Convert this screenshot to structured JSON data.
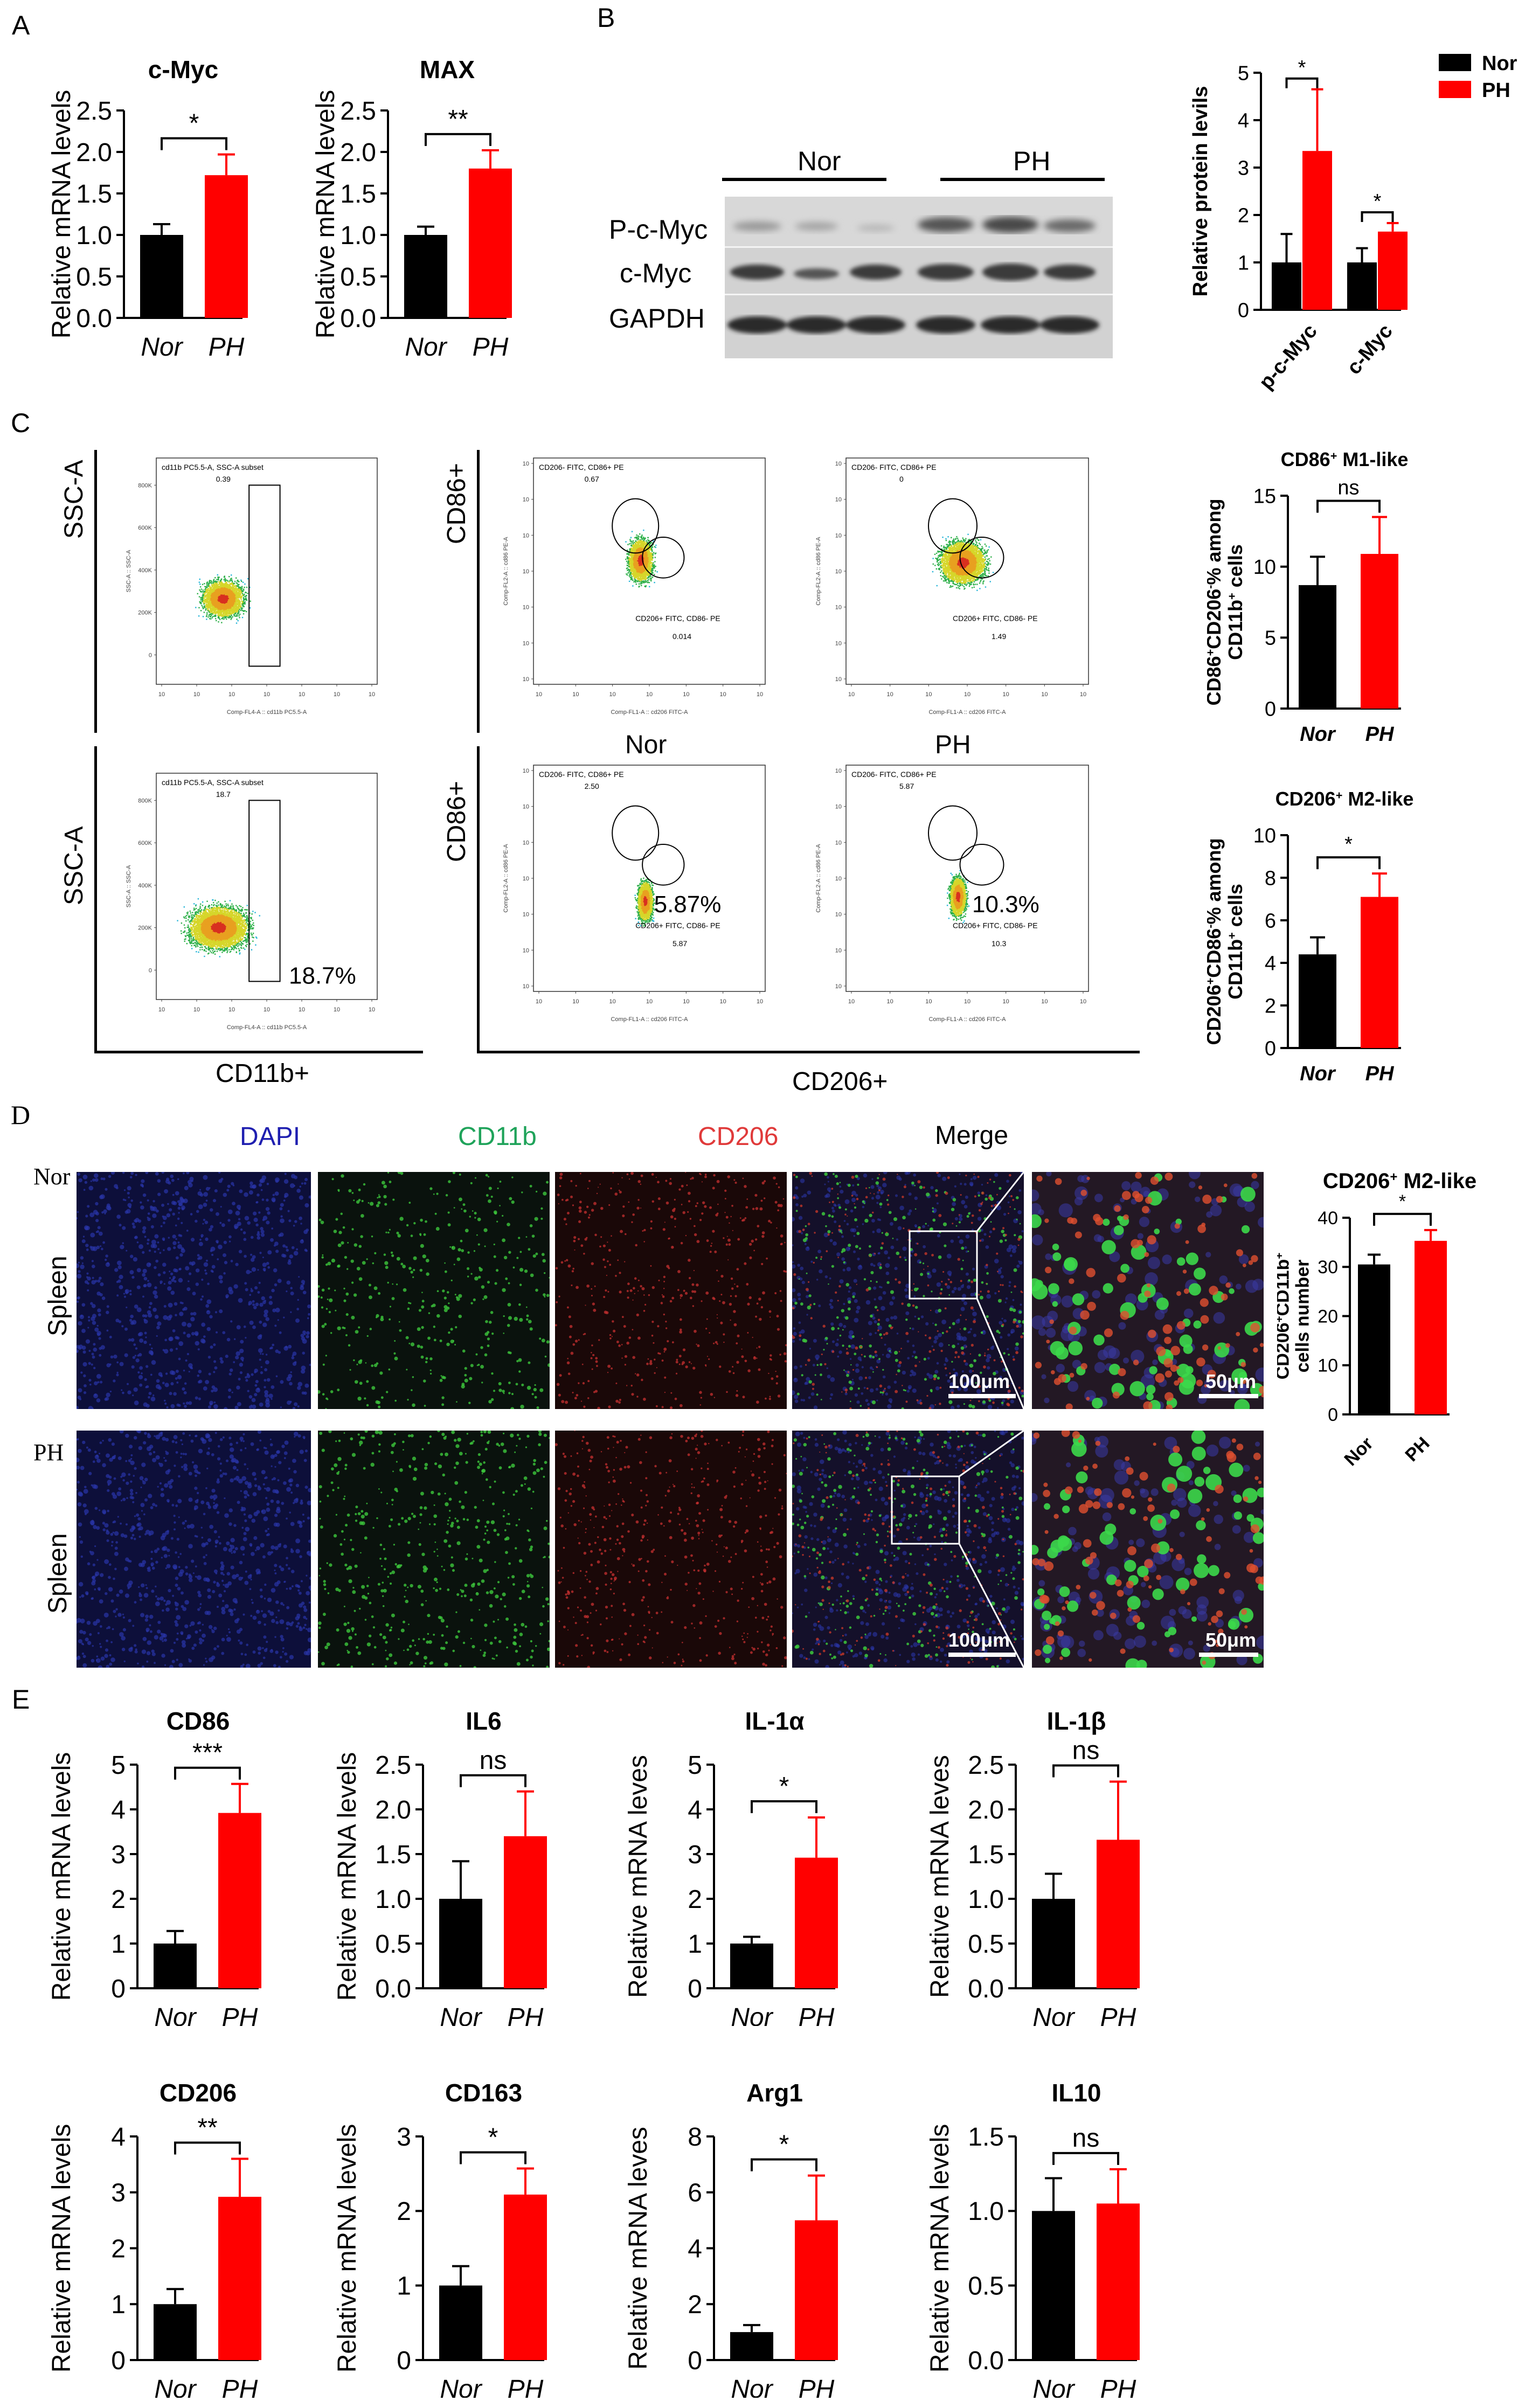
{
  "panels": {
    "A": "A",
    "B": "B",
    "C": "C",
    "D": "D",
    "E": "E"
  },
  "colors": {
    "nor": "#000000",
    "ph": "#ff0000",
    "dapi": "#1f1fb0",
    "cd11b": "#1fa35a",
    "cd206": "#e03a3a"
  },
  "blot": {
    "groups": [
      "Nor",
      "PH"
    ],
    "rows": [
      "P-c-Myc",
      "c-Myc",
      "GAPDH"
    ]
  },
  "flow": {
    "row_labels": [
      "SSC-A",
      "CD86+"
    ],
    "bottom_labels": {
      "cd11b": "CD11b+",
      "cd206": "CD206+"
    },
    "group_labels": [
      "Nor",
      "PH"
    ],
    "gates": {
      "r1_cd11b_title": "cd11b PC5.5-A, SSC-A subset",
      "r1_cd11b_val": "0.39",
      "r2_cd11b_title": "cd11b PC5.5-A, SSC-A subset",
      "r2_cd11b_val": "18.7",
      "r2_cd11b_big": "18.7%",
      "q_upper": "CD206- FITC, CD86+ PE",
      "q_lower": "CD206+ FITC, CD86- PE",
      "r1_nor_upper": "0.67",
      "r1_nor_lower": "0.014",
      "r1_ph_upper": "0",
      "r1_ph_lower": "1.49",
      "r2_nor_upper": "2.50",
      "r2_nor_lower": "5.87",
      "r2_nor_big": "5.87%",
      "r2_ph_upper": "5.87",
      "r2_ph_lower": "10.3",
      "r2_ph_big": "10.3%"
    },
    "axes": {
      "ssc_y": "SSC-A :: SSC-A",
      "cd11b_x": "Comp-FL4-A :: cd11b PC5.5-A",
      "cd86_y": "Comp-FL2-A :: cd86 PE-A",
      "cd206_x": "Comp-FL1-A :: cd206 FITC-A",
      "y_ticks": [
        "800K",
        "600K",
        "400K",
        "200K",
        "0"
      ]
    }
  },
  "micro": {
    "channels": [
      "DAPI",
      "CD11b",
      "CD206",
      "Merge"
    ],
    "rows": [
      "Nor",
      "PH"
    ],
    "tissue": "Spleen",
    "scale1": "100μm",
    "scale2": "50μm"
  },
  "chart_data": [
    {
      "id": "A1",
      "type": "bar",
      "title": "c-Myc",
      "categories": [
        "Nor",
        "PH"
      ],
      "values": [
        1.0,
        1.72
      ],
      "errors": [
        0.13,
        0.25
      ],
      "ylabel": "Relative mRNA levels",
      "ylim": [
        0,
        2.5
      ],
      "yticks": [
        "0.0",
        "0.5",
        "1.0",
        "1.5",
        "2.0",
        "2.5"
      ],
      "sig": "*",
      "italic_x": true
    },
    {
      "id": "A2",
      "type": "bar",
      "title": "MAX",
      "categories": [
        "Nor",
        "PH"
      ],
      "values": [
        1.0,
        1.8
      ],
      "errors": [
        0.1,
        0.22
      ],
      "ylabel": "Relative mRNA levels",
      "ylim": [
        0,
        2.5
      ],
      "yticks": [
        "0.0",
        "0.5",
        "1.0",
        "1.5",
        "2.0",
        "2.5"
      ],
      "sig": "**",
      "italic_x": true
    },
    {
      "id": "B",
      "type": "bar",
      "title": "",
      "categories": [
        "p-c-Myc",
        "c-Myc"
      ],
      "series": [
        {
          "name": "Nor",
          "values": [
            1.0,
            1.0
          ],
          "errors": [
            0.6,
            0.3
          ]
        },
        {
          "name": "PH",
          "values": [
            3.35,
            1.65
          ],
          "errors": [
            1.3,
            0.18
          ]
        }
      ],
      "ylabel": "Relative protein levils",
      "ylim": [
        0,
        5
      ],
      "yticks": [
        "0",
        "1",
        "2",
        "3",
        "4",
        "5"
      ],
      "sig": [
        "*",
        "*"
      ]
    },
    {
      "id": "C1",
      "type": "bar",
      "title": "CD86+ M1-like",
      "categories": [
        "Nor",
        "PH"
      ],
      "values": [
        8.7,
        10.9
      ],
      "errors": [
        2.0,
        2.6
      ],
      "ylabel": "CD86+CD206-% among CD11b+ cells",
      "ylim": [
        0,
        15
      ],
      "yticks": [
        "0",
        "5",
        "10",
        "15"
      ],
      "sig": "ns",
      "italic_x": true
    },
    {
      "id": "C2",
      "type": "bar",
      "title": "CD206+ M2-like",
      "categories": [
        "Nor",
        "PH"
      ],
      "values": [
        4.4,
        7.1
      ],
      "errors": [
        0.8,
        1.1
      ],
      "ylabel": "CD206+CD86-% among CD11b+ cells",
      "ylim": [
        0,
        10
      ],
      "yticks": [
        "0",
        "2",
        "4",
        "6",
        "8",
        "10"
      ],
      "sig": "*",
      "italic_x": true
    },
    {
      "id": "D1",
      "type": "bar",
      "title": "CD206+ M2-like",
      "categories": [
        "Nor",
        "PH"
      ],
      "values": [
        30.5,
        35.3
      ],
      "errors": [
        2.0,
        2.2
      ],
      "ylabel": "CD206+CD11b+ cells number",
      "ylim": [
        0,
        40
      ],
      "yticks": [
        "0",
        "10",
        "20",
        "30",
        "40"
      ],
      "sig": "*"
    },
    {
      "id": "E1",
      "type": "bar",
      "title": "CD86",
      "categories": [
        "Nor",
        "PH"
      ],
      "values": [
        1.0,
        3.92
      ],
      "errors": [
        0.28,
        0.65
      ],
      "ylabel": "Relative mRNA levels",
      "ylim": [
        0,
        5
      ],
      "yticks": [
        "0",
        "1",
        "2",
        "3",
        "4",
        "5"
      ],
      "sig": "***",
      "italic_x": true
    },
    {
      "id": "E2",
      "type": "bar",
      "title": "IL6",
      "categories": [
        "Nor",
        "PH"
      ],
      "values": [
        1.0,
        1.7
      ],
      "errors": [
        0.42,
        0.5
      ],
      "ylabel": "Relative mRNA levels",
      "ylim": [
        0,
        2.5
      ],
      "yticks": [
        "0.0",
        "0.5",
        "1.0",
        "1.5",
        "2.0",
        "2.5"
      ],
      "sig": "ns",
      "italic_x": true
    },
    {
      "id": "E3",
      "type": "bar",
      "title": "IL-1α",
      "categories": [
        "Nor",
        "PH"
      ],
      "values": [
        1.0,
        2.92
      ],
      "errors": [
        0.15,
        0.9
      ],
      "ylabel": "Relative mRNA leves",
      "ylim": [
        0,
        5
      ],
      "yticks": [
        "0",
        "1",
        "2",
        "3",
        "4",
        "5"
      ],
      "sig": "*",
      "italic_x": true
    },
    {
      "id": "E4",
      "type": "bar",
      "title": "IL-1β",
      "categories": [
        "Nor",
        "PH"
      ],
      "values": [
        1.0,
        1.66
      ],
      "errors": [
        0.28,
        0.65
      ],
      "ylabel": "Relative mRNA leves",
      "ylim": [
        0,
        2.5
      ],
      "yticks": [
        "0.0",
        "0.5",
        "1.0",
        "1.5",
        "2.0",
        "2.5"
      ],
      "sig": "ns",
      "italic_x": true
    },
    {
      "id": "E5",
      "type": "bar",
      "title": "CD206",
      "categories": [
        "Nor",
        "PH"
      ],
      "values": [
        1.0,
        2.92
      ],
      "errors": [
        0.27,
        0.68
      ],
      "ylabel": "Relative mRNA levels",
      "ylim": [
        0,
        4
      ],
      "yticks": [
        "0",
        "1",
        "2",
        "3",
        "4"
      ],
      "sig": "**",
      "italic_x": true
    },
    {
      "id": "E6",
      "type": "bar",
      "title": "CD163",
      "categories": [
        "Nor",
        "PH"
      ],
      "values": [
        1.0,
        2.22
      ],
      "errors": [
        0.26,
        0.35
      ],
      "ylabel": "Relative mRNA levels",
      "ylim": [
        0,
        3
      ],
      "yticks": [
        "0",
        "1",
        "2",
        "3"
      ],
      "sig": "*",
      "italic_x": true
    },
    {
      "id": "E7",
      "type": "bar",
      "title": "Arg1",
      "categories": [
        "Nor",
        "PH"
      ],
      "values": [
        1.0,
        5.0
      ],
      "errors": [
        0.25,
        1.6
      ],
      "ylabel": "Relative mRNA leves",
      "ylim": [
        0,
        8
      ],
      "yticks": [
        "0",
        "2",
        "4",
        "6",
        "8"
      ],
      "sig": "*",
      "italic_x": true
    },
    {
      "id": "E8",
      "type": "bar",
      "title": "IL10",
      "categories": [
        "Nor",
        "PH"
      ],
      "values": [
        1.0,
        1.05
      ],
      "errors": [
        0.22,
        0.23
      ],
      "ylabel": "Relative mRNA levels",
      "ylim": [
        0,
        1.5
      ],
      "yticks": [
        "0.0",
        "0.5",
        "1.0",
        "1.5"
      ],
      "sig": "ns",
      "italic_x": true
    }
  ]
}
